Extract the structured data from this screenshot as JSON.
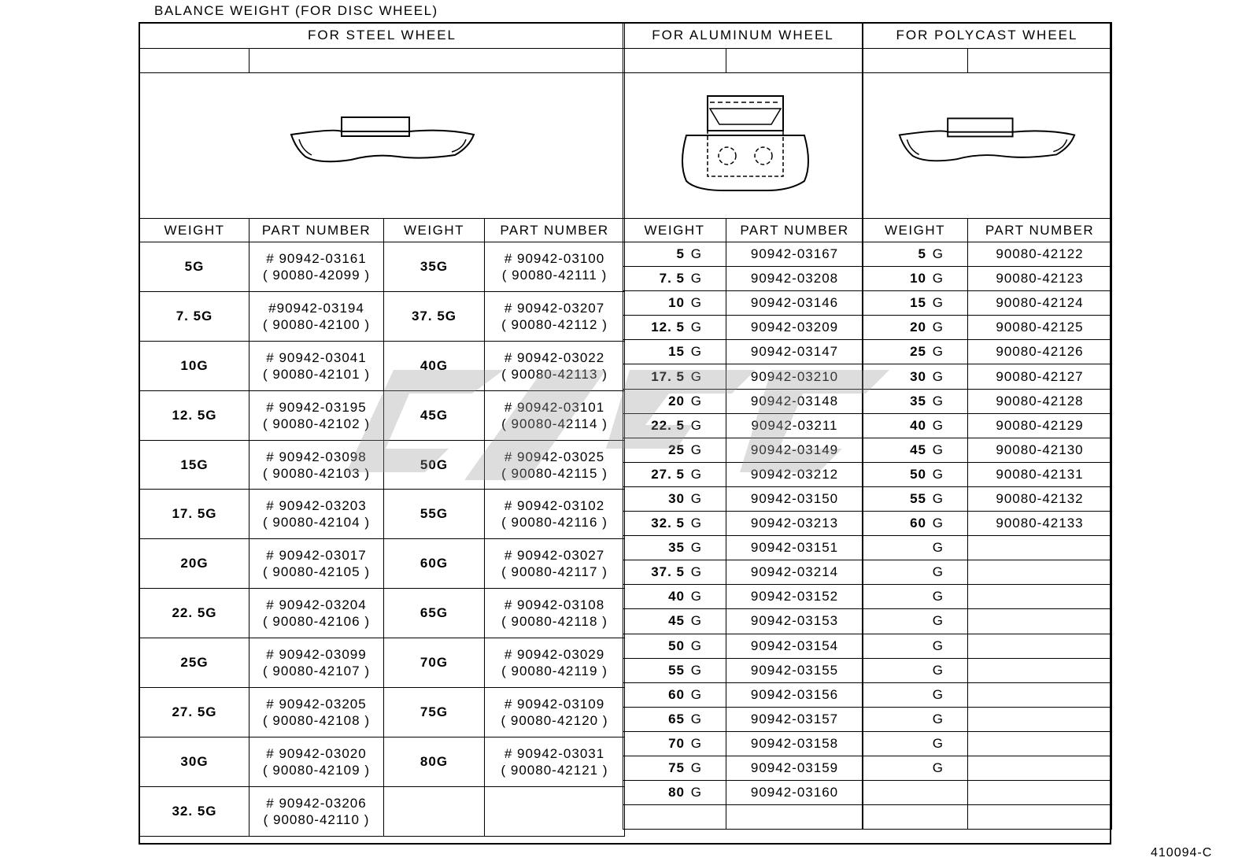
{
  "title": "BALANCE WEIGHT (FOR DISC WHEEL)",
  "footer_code": "410094-C",
  "steel": {
    "heading": "FOR STEEL WHEEL",
    "col_weight": "WEIGHT",
    "col_part": "PART NUMBER",
    "rows": [
      {
        "w1": "5G",
        "p1a": "# 90942-03161",
        "p1b": "( 90080-42099 )",
        "w2": "35G",
        "p2a": "# 90942-03100",
        "p2b": "( 90080-42111 )"
      },
      {
        "w1": "7. 5G",
        "p1a": "#90942-03194",
        "p1b": "( 90080-42100 )",
        "w2": "37. 5G",
        "p2a": "# 90942-03207",
        "p2b": "( 90080-42112 )"
      },
      {
        "w1": "10G",
        "p1a": "# 90942-03041",
        "p1b": "( 90080-42101 )",
        "w2": "40G",
        "p2a": "# 90942-03022",
        "p2b": "( 90080-42113 )"
      },
      {
        "w1": "12. 5G",
        "p1a": "# 90942-03195",
        "p1b": "( 90080-42102 )",
        "w2": "45G",
        "p2a": "# 90942-03101",
        "p2b": "( 90080-42114 )"
      },
      {
        "w1": "15G",
        "p1a": "# 90942-03098",
        "p1b": "( 90080-42103 )",
        "w2": "50G",
        "p2a": "# 90942-03025",
        "p2b": "( 90080-42115 )"
      },
      {
        "w1": "17. 5G",
        "p1a": "# 90942-03203",
        "p1b": "( 90080-42104 )",
        "w2": "55G",
        "p2a": "# 90942-03102",
        "p2b": "( 90080-42116 )"
      },
      {
        "w1": "20G",
        "p1a": "# 90942-03017",
        "p1b": "( 90080-42105 )",
        "w2": "60G",
        "p2a": "# 90942-03027",
        "p2b": "( 90080-42117 )"
      },
      {
        "w1": "22. 5G",
        "p1a": "# 90942-03204",
        "p1b": "( 90080-42106 )",
        "w2": "65G",
        "p2a": "# 90942-03108",
        "p2b": "( 90080-42118 )"
      },
      {
        "w1": "25G",
        "p1a": "# 90942-03099",
        "p1b": "( 90080-42107 )",
        "w2": "70G",
        "p2a": "# 90942-03029",
        "p2b": "( 90080-42119 )"
      },
      {
        "w1": "27. 5G",
        "p1a": "# 90942-03205",
        "p1b": "( 90080-42108 )",
        "w2": "75G",
        "p2a": "# 90942-03109",
        "p2b": "( 90080-42120 )"
      },
      {
        "w1": "30G",
        "p1a": "# 90942-03020",
        "p1b": "( 90080-42109 )",
        "w2": "80G",
        "p2a": "# 90942-03031",
        "p2b": "( 90080-42121 )"
      },
      {
        "w1": "32. 5G",
        "p1a": "# 90942-03206",
        "p1b": "( 90080-42110 )",
        "w2": "",
        "p2a": "",
        "p2b": ""
      }
    ]
  },
  "aluminum": {
    "heading": "FOR ALUMINUM WHEEL",
    "col_weight": "WEIGHT",
    "col_part": "PART NUMBER",
    "rows": [
      {
        "w": "5",
        "u": "G",
        "p": "90942-03167"
      },
      {
        "w": "7. 5",
        "u": "G",
        "p": "90942-03208"
      },
      {
        "w": "10",
        "u": "G",
        "p": "90942-03146"
      },
      {
        "w": "12. 5",
        "u": "G",
        "p": "90942-03209"
      },
      {
        "w": "15",
        "u": "G",
        "p": "90942-03147"
      },
      {
        "w": "17. 5",
        "u": "G",
        "p": "90942-03210"
      },
      {
        "w": "20",
        "u": "G",
        "p": "90942-03148"
      },
      {
        "w": "22. 5",
        "u": "G",
        "p": "90942-03211"
      },
      {
        "w": "25",
        "u": "G",
        "p": "90942-03149"
      },
      {
        "w": "27. 5",
        "u": "G",
        "p": "90942-03212"
      },
      {
        "w": "30",
        "u": "G",
        "p": "90942-03150"
      },
      {
        "w": "32. 5",
        "u": "G",
        "p": "90942-03213"
      },
      {
        "w": "35",
        "u": "G",
        "p": "90942-03151"
      },
      {
        "w": "37. 5",
        "u": "G",
        "p": "90942-03214"
      },
      {
        "w": "40",
        "u": "G",
        "p": "90942-03152"
      },
      {
        "w": "45",
        "u": "G",
        "p": "90942-03153"
      },
      {
        "w": "50",
        "u": "G",
        "p": "90942-03154"
      },
      {
        "w": "55",
        "u": "G",
        "p": "90942-03155"
      },
      {
        "w": "60",
        "u": "G",
        "p": "90942-03156"
      },
      {
        "w": "65",
        "u": "G",
        "p": "90942-03157"
      },
      {
        "w": "70",
        "u": "G",
        "p": "90942-03158"
      },
      {
        "w": "75",
        "u": "G",
        "p": "90942-03159"
      },
      {
        "w": "80",
        "u": "G",
        "p": "90942-03160"
      },
      {
        "w": "",
        "u": "",
        "p": ""
      }
    ]
  },
  "polycast": {
    "heading": "FOR POLYCAST WHEEL",
    "col_weight": "WEIGHT",
    "col_part": "PART NUMBER",
    "rows": [
      {
        "w": "5",
        "u": "G",
        "p": "90080-42122"
      },
      {
        "w": "10",
        "u": "G",
        "p": "90080-42123"
      },
      {
        "w": "15",
        "u": "G",
        "p": "90080-42124"
      },
      {
        "w": "20",
        "u": "G",
        "p": "90080-42125"
      },
      {
        "w": "25",
        "u": "G",
        "p": "90080-42126"
      },
      {
        "w": "30",
        "u": "G",
        "p": "90080-42127"
      },
      {
        "w": "35",
        "u": "G",
        "p": "90080-42128"
      },
      {
        "w": "40",
        "u": "G",
        "p": "90080-42129"
      },
      {
        "w": "45",
        "u": "G",
        "p": "90080-42130"
      },
      {
        "w": "50",
        "u": "G",
        "p": "90080-42131"
      },
      {
        "w": "55",
        "u": "G",
        "p": "90080-42132"
      },
      {
        "w": "60",
        "u": "G",
        "p": "90080-42133"
      },
      {
        "w": "",
        "u": "G",
        "p": ""
      },
      {
        "w": "",
        "u": "G",
        "p": ""
      },
      {
        "w": "",
        "u": "G",
        "p": ""
      },
      {
        "w": "",
        "u": "G",
        "p": ""
      },
      {
        "w": "",
        "u": "G",
        "p": ""
      },
      {
        "w": "",
        "u": "G",
        "p": ""
      },
      {
        "w": "",
        "u": "G",
        "p": ""
      },
      {
        "w": "",
        "u": "G",
        "p": ""
      },
      {
        "w": "",
        "u": "G",
        "p": ""
      },
      {
        "w": "",
        "u": "G",
        "p": ""
      },
      {
        "w": "",
        "u": "",
        "p": ""
      },
      {
        "w": "",
        "u": "",
        "p": ""
      }
    ]
  },
  "watermark_color": "#9a9a9a"
}
